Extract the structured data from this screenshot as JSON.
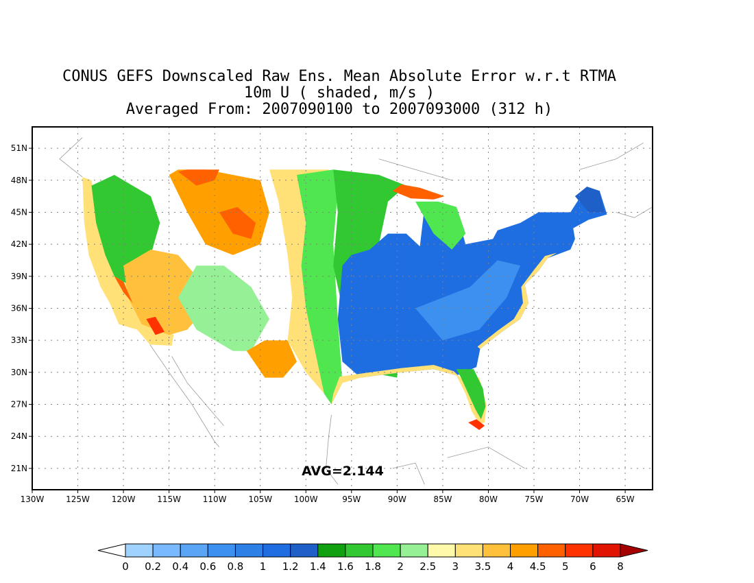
{
  "title": {
    "line1": "CONUS GEFS Downscaled Raw Ens. Mean Absolute Error w.r.t RTMA",
    "line2": "10m U ( shaded, m/s )",
    "line3": "Averaged From: 2007090100 to 2007093000 (312 h)"
  },
  "annotation": "AVG=2.144",
  "axes": {
    "lon_range": [
      -130,
      -62
    ],
    "lat_range": [
      19,
      53
    ],
    "lat_ticks": [
      {
        "value": 51,
        "label": "51N"
      },
      {
        "value": 48,
        "label": "48N"
      },
      {
        "value": 45,
        "label": "45N"
      },
      {
        "value": 42,
        "label": "42N"
      },
      {
        "value": 39,
        "label": "39N"
      },
      {
        "value": 36,
        "label": "36N"
      },
      {
        "value": 33,
        "label": "33N"
      },
      {
        "value": 30,
        "label": "30N"
      },
      {
        "value": 27,
        "label": "27N"
      },
      {
        "value": 24,
        "label": "24N"
      },
      {
        "value": 21,
        "label": "21N"
      }
    ],
    "lon_ticks": [
      {
        "value": -130,
        "label": "130W"
      },
      {
        "value": -125,
        "label": "125W"
      },
      {
        "value": -120,
        "label": "120W"
      },
      {
        "value": -115,
        "label": "115W"
      },
      {
        "value": -110,
        "label": "110W"
      },
      {
        "value": -105,
        "label": "105W"
      },
      {
        "value": -100,
        "label": "100W"
      },
      {
        "value": -95,
        "label": "95W"
      },
      {
        "value": -90,
        "label": "90W"
      },
      {
        "value": -85,
        "label": "85W"
      },
      {
        "value": -80,
        "label": "80W"
      },
      {
        "value": -75,
        "label": "75W"
      },
      {
        "value": -70,
        "label": "70W"
      },
      {
        "value": -65,
        "label": "65W"
      }
    ],
    "grid": true
  },
  "colorbar": {
    "labels": [
      "0",
      "0.2",
      "0.4",
      "0.6",
      "0.8",
      "1",
      "1.2",
      "1.4",
      "1.6",
      "1.8",
      "2",
      "2.5",
      "3",
      "3.5",
      "4",
      "4.5",
      "5",
      "6",
      "8"
    ],
    "below_color": "#ffffff",
    "above_color": "#a50000",
    "colors": [
      "#a0d2ff",
      "#78b9ff",
      "#5aa5f5",
      "#3c91f0",
      "#2d80e6",
      "#1e6ee1",
      "#1e5fc8",
      "#10a010",
      "#32c832",
      "#50e650",
      "#96f096",
      "#fffaaa",
      "#ffe178",
      "#ffc03c",
      "#ffa000",
      "#ff6000",
      "#ff3200",
      "#e11400"
    ]
  },
  "regions": [
    {
      "name": "west-coast-yellow",
      "color": "#ffe178",
      "polygon": [
        [
          -124.5,
          48.3
        ],
        [
          -124.3,
          44
        ],
        [
          -123.8,
          41
        ],
        [
          -122.5,
          38
        ],
        [
          -121.5,
          36.5
        ],
        [
          -120.5,
          34.5
        ],
        [
          -118.5,
          34
        ],
        [
          -117.1,
          32.6
        ],
        [
          -114.7,
          32.5
        ],
        [
          -114.5,
          33.5
        ],
        [
          -118,
          36
        ],
        [
          -121,
          40
        ],
        [
          -122.8,
          45
        ],
        [
          -123.5,
          48
        ]
      ]
    },
    {
      "name": "northwest-green",
      "color": "#32c832",
      "polygon": [
        [
          -123.5,
          47.5
        ],
        [
          -123,
          44
        ],
        [
          -122,
          41
        ],
        [
          -121,
          39
        ],
        [
          -119,
          38
        ],
        [
          -117,
          41
        ],
        [
          -116,
          44
        ],
        [
          -117,
          46.5
        ],
        [
          -119,
          47.5
        ],
        [
          -121,
          48.5
        ]
      ]
    },
    {
      "name": "great-basin-orange",
      "color": "#ffc03c",
      "polygon": [
        [
          -120,
          40
        ],
        [
          -119.5,
          37
        ],
        [
          -118,
          34.5
        ],
        [
          -115,
          33.5
        ],
        [
          -113,
          34
        ],
        [
          -111,
          36
        ],
        [
          -112,
          39
        ],
        [
          -114,
          41
        ],
        [
          -117,
          41.5
        ]
      ]
    },
    {
      "name": "southwest-red-spots",
      "color": "#ff6000",
      "polygon": [
        [
          -121,
          39
        ],
        [
          -120,
          37.5
        ],
        [
          -119,
          36.5
        ],
        [
          -120,
          38.5
        ]
      ]
    },
    {
      "name": "southern-california-red",
      "color": "#ff3200",
      "polygon": [
        [
          -117.5,
          35
        ],
        [
          -116.5,
          33.5
        ],
        [
          -115.5,
          33.8
        ],
        [
          -116.5,
          35.2
        ]
      ]
    },
    {
      "name": "four-corners-green",
      "color": "#96f096",
      "polygon": [
        [
          -114,
          37
        ],
        [
          -112,
          34
        ],
        [
          -108,
          32
        ],
        [
          -106,
          32
        ],
        [
          -104,
          35
        ],
        [
          -106,
          38
        ],
        [
          -109,
          40
        ],
        [
          -112,
          40
        ]
      ]
    },
    {
      "name": "rockies-orange",
      "color": "#ffa000",
      "polygon": [
        [
          -115,
          48.5
        ],
        [
          -113,
          45
        ],
        [
          -111,
          42
        ],
        [
          -108,
          41
        ],
        [
          -105,
          42
        ],
        [
          -104,
          45
        ],
        [
          -105,
          48
        ],
        [
          -111,
          49
        ],
        [
          -114,
          49
        ]
      ]
    },
    {
      "name": "northern-rockies-red",
      "color": "#ff6000",
      "polygon": [
        [
          -114,
          48.8
        ],
        [
          -112,
          47.5
        ],
        [
          -110,
          48
        ],
        [
          -109.5,
          49
        ],
        [
          -113,
          49
        ]
      ]
    },
    {
      "name": "wyoming-red",
      "color": "#ff6000",
      "polygon": [
        [
          -109.5,
          45
        ],
        [
          -108,
          43
        ],
        [
          -106,
          42.5
        ],
        [
          -105.5,
          44
        ],
        [
          -107.5,
          45.5
        ]
      ]
    },
    {
      "name": "west-texas-orange",
      "color": "#ffa000",
      "polygon": [
        [
          -106.5,
          32
        ],
        [
          -104.5,
          29.5
        ],
        [
          -102.5,
          29.5
        ],
        [
          -101,
          31
        ],
        [
          -102,
          33
        ],
        [
          -104.5,
          33
        ]
      ]
    },
    {
      "name": "high-plains-yellow",
      "color": "#ffe178",
      "polygon": [
        [
          -104,
          49
        ],
        [
          -103,
          46
        ],
        [
          -102,
          41
        ],
        [
          -101.5,
          37
        ],
        [
          -102,
          33
        ],
        [
          -100,
          30
        ],
        [
          -98,
          28
        ],
        [
          -97,
          32
        ],
        [
          -98.5,
          38
        ],
        [
          -99,
          43
        ],
        [
          -98.5,
          46
        ],
        [
          -97.5,
          49
        ]
      ]
    },
    {
      "name": "plains-green",
      "color": "#50e650",
      "polygon": [
        [
          -101,
          48.5
        ],
        [
          -100,
          44
        ],
        [
          -100.5,
          40
        ],
        [
          -100,
          36
        ],
        [
          -99,
          32
        ],
        [
          -98,
          28
        ],
        [
          -97.2,
          27
        ],
        [
          -96,
          29
        ],
        [
          -96.5,
          35
        ],
        [
          -97,
          42
        ],
        [
          -96.5,
          47
        ],
        [
          -97,
          49
        ]
      ]
    },
    {
      "name": "midwest-green",
      "color": "#32c832",
      "polygon": [
        [
          -97,
          49
        ],
        [
          -96.5,
          45
        ],
        [
          -97,
          40
        ],
        [
          -96,
          36
        ],
        [
          -95,
          32
        ],
        [
          -93,
          30
        ],
        [
          -90,
          29.5
        ],
        [
          -90,
          33
        ],
        [
          -91,
          38
        ],
        [
          -92,
          42
        ],
        [
          -91,
          46
        ],
        [
          -89,
          47.5
        ],
        [
          -92,
          48.5
        ]
      ]
    },
    {
      "name": "eastern-us-blue",
      "color": "#1e6ee1",
      "polygon": [
        [
          -96,
          40
        ],
        [
          -96.5,
          35
        ],
        [
          -96,
          31
        ],
        [
          -94,
          29.5
        ],
        [
          -89.5,
          30
        ],
        [
          -86,
          30.3
        ],
        [
          -83.5,
          29.7
        ],
        [
          -81.3,
          30.5
        ],
        [
          -80.9,
          32.2
        ],
        [
          -78.5,
          33.8
        ],
        [
          -76.5,
          35
        ],
        [
          -75.6,
          36.5
        ],
        [
          -76,
          38.2
        ],
        [
          -74.5,
          39.5
        ],
        [
          -73.5,
          40.7
        ],
        [
          -71,
          41.5
        ],
        [
          -70.5,
          42.5
        ],
        [
          -70.7,
          43.5
        ],
        [
          -69,
          44.3
        ],
        [
          -67,
          44.8
        ],
        [
          -67.8,
          47
        ],
        [
          -69.2,
          47.4
        ],
        [
          -71,
          45
        ],
        [
          -74.5,
          45
        ],
        [
          -76.5,
          44
        ],
        [
          -79,
          43.3
        ],
        [
          -79.5,
          42.5
        ],
        [
          -82.5,
          42
        ],
        [
          -83.5,
          45
        ],
        [
          -85,
          45.8
        ],
        [
          -87,
          45.5
        ],
        [
          -87.5,
          41.8
        ],
        [
          -89,
          43
        ],
        [
          -91,
          43
        ],
        [
          -93,
          41.5
        ],
        [
          -95,
          41
        ]
      ]
    },
    {
      "name": "appalachian-blue-light",
      "color": "#3c91f0",
      "polygon": [
        [
          -88,
          36
        ],
        [
          -85,
          33
        ],
        [
          -81,
          34
        ],
        [
          -78,
          37
        ],
        [
          -76.5,
          40
        ],
        [
          -79,
          40.5
        ],
        [
          -82,
          38
        ],
        [
          -85,
          37
        ]
      ]
    },
    {
      "name": "northern-maine-blue",
      "color": "#1e5fc8",
      "polygon": [
        [
          -70.5,
          46.5
        ],
        [
          -69,
          45
        ],
        [
          -67.3,
          45
        ],
        [
          -67.8,
          47
        ],
        [
          -69.2,
          47.4
        ]
      ]
    },
    {
      "name": "great-lakes-green",
      "color": "#50e650",
      "polygon": [
        [
          -88,
          46
        ],
        [
          -86,
          43
        ],
        [
          -84,
          41.5
        ],
        [
          -82.5,
          43
        ],
        [
          -83.5,
          45.5
        ],
        [
          -85.5,
          46
        ]
      ]
    },
    {
      "name": "upper-peninsula-red",
      "color": "#ff6000",
      "polygon": [
        [
          -90.5,
          47
        ],
        [
          -88.5,
          46.3
        ],
        [
          -86,
          46.2
        ],
        [
          -84.8,
          46.5
        ],
        [
          -87.5,
          47.3
        ],
        [
          -89.5,
          47.6
        ]
      ]
    },
    {
      "name": "atlantic-coast-yellow",
      "color": "#ffe178",
      "polygon": [
        [
          -80.9,
          32.2
        ],
        [
          -78.5,
          33.8
        ],
        [
          -76.5,
          35
        ],
        [
          -75.6,
          36.5
        ],
        [
          -76,
          38.2
        ],
        [
          -74.5,
          39.5
        ],
        [
          -73.5,
          40.7
        ],
        [
          -72.5,
          41.2
        ],
        [
          -73.8,
          40.9
        ],
        [
          -75,
          39.6
        ],
        [
          -76.4,
          38
        ],
        [
          -76.2,
          36.5
        ],
        [
          -77.2,
          35
        ],
        [
          -79,
          33.9
        ],
        [
          -81.2,
          32.4
        ]
      ]
    },
    {
      "name": "gulf-coast-yellow",
      "color": "#ffe178",
      "polygon": [
        [
          -97.2,
          27
        ],
        [
          -96,
          29
        ],
        [
          -94,
          29.5
        ],
        [
          -89.5,
          30
        ],
        [
          -86,
          30.3
        ],
        [
          -83.5,
          29.7
        ],
        [
          -82.5,
          28
        ],
        [
          -81.8,
          26.3
        ],
        [
          -81,
          25.2
        ],
        [
          -80.4,
          25.3
        ],
        [
          -80.2,
          27
        ],
        [
          -81,
          29.5
        ],
        [
          -82.8,
          29.3
        ],
        [
          -83.8,
          30.1
        ],
        [
          -86,
          30.7
        ],
        [
          -89.5,
          30.4
        ],
        [
          -93.8,
          29.9
        ],
        [
          -96.3,
          29.6
        ],
        [
          -97,
          28
        ]
      ]
    },
    {
      "name": "florida-green",
      "color": "#32c832",
      "polygon": [
        [
          -83.5,
          30.3
        ],
        [
          -81.6,
          30.3
        ],
        [
          -80.6,
          28.5
        ],
        [
          -80.3,
          26.8
        ],
        [
          -80.8,
          25.6
        ],
        [
          -81.4,
          26.5
        ],
        [
          -82.3,
          28.2
        ],
        [
          -83,
          29.5
        ]
      ]
    },
    {
      "name": "florida-keys-red",
      "color": "#ff3200",
      "polygon": [
        [
          -82.2,
          25.3
        ],
        [
          -81,
          24.6
        ],
        [
          -80.4,
          25
        ],
        [
          -81.3,
          25.6
        ]
      ]
    }
  ]
}
